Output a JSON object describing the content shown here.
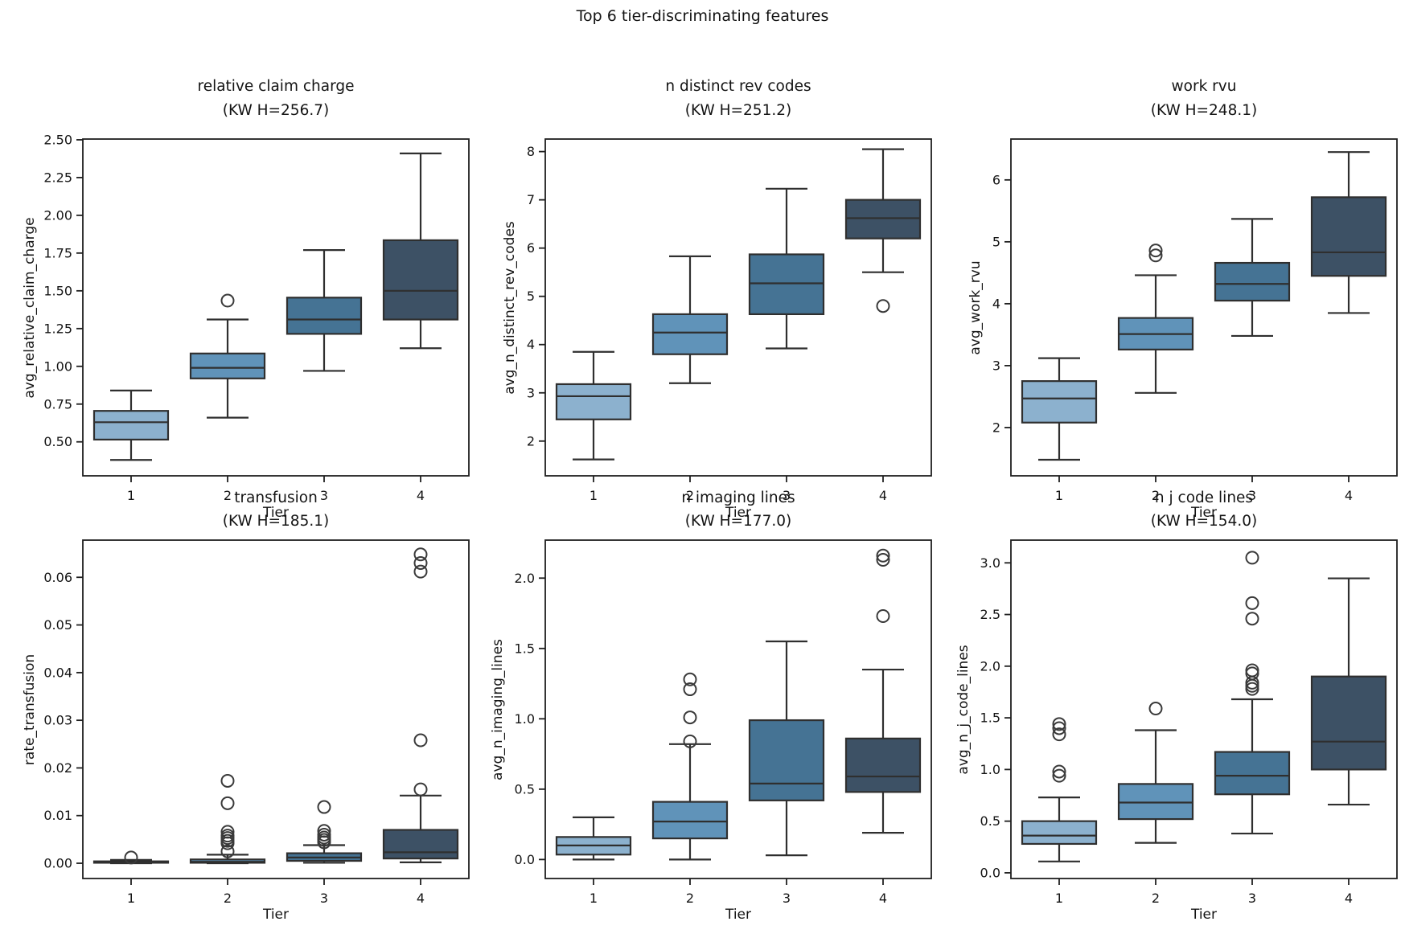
{
  "figure": {
    "title": "Top 6 tier-discriminating features",
    "background": "#ffffff",
    "box_colors": [
      "#8cb1ce",
      "#6093b9",
      "#457394",
      "#3d5165"
    ],
    "box_line_color": "#2f2f2f",
    "spine_color": "#1f1f1f",
    "outlier_color": "#3a3a3a"
  },
  "chart_data": [
    {
      "type": "boxplot",
      "title": "relative claim charge",
      "subtitle": "(KW H=256.7)",
      "xlabel": "Tier",
      "ylabel": "avg_relative_claim_charge",
      "categories": [
        "1",
        "2",
        "3",
        "4"
      ],
      "ylim": [
        0.275,
        2.505
      ],
      "yticks": [
        0.5,
        0.75,
        1.0,
        1.25,
        1.5,
        1.75,
        2.0,
        2.25,
        2.5
      ],
      "ytick_labels": [
        "0.50",
        "0.75",
        "1.00",
        "1.25",
        "1.50",
        "1.75",
        "2.00",
        "2.25",
        "2.50"
      ],
      "boxes": [
        {
          "tier": "1",
          "whislo": 0.38,
          "q1": 0.515,
          "med": 0.63,
          "q3": 0.705,
          "whishi": 0.84,
          "outliers": []
        },
        {
          "tier": "2",
          "whislo": 0.66,
          "q1": 0.92,
          "med": 0.99,
          "q3": 1.085,
          "whishi": 1.31,
          "outliers": [
            1.435
          ]
        },
        {
          "tier": "3",
          "whislo": 0.97,
          "q1": 1.215,
          "med": 1.31,
          "q3": 1.455,
          "whishi": 1.77,
          "outliers": []
        },
        {
          "tier": "4",
          "whislo": 1.12,
          "q1": 1.31,
          "med": 1.5,
          "q3": 1.835,
          "whishi": 2.41,
          "outliers": []
        }
      ]
    },
    {
      "type": "boxplot",
      "title": "n distinct rev codes",
      "subtitle": "(KW H=251.2)",
      "xlabel": "Tier",
      "ylabel": "avg_n_distinct_rev_codes",
      "categories": [
        "1",
        "2",
        "3",
        "4"
      ],
      "ylim": [
        1.28,
        8.26
      ],
      "yticks": [
        2,
        3,
        4,
        5,
        6,
        7,
        8
      ],
      "ytick_labels": [
        "2",
        "3",
        "4",
        "5",
        "6",
        "7",
        "8"
      ],
      "boxes": [
        {
          "tier": "1",
          "whislo": 1.62,
          "q1": 2.45,
          "med": 2.93,
          "q3": 3.18,
          "whishi": 3.85,
          "outliers": []
        },
        {
          "tier": "2",
          "whislo": 3.2,
          "q1": 3.8,
          "med": 4.25,
          "q3": 4.63,
          "whishi": 5.83,
          "outliers": []
        },
        {
          "tier": "3",
          "whislo": 3.92,
          "q1": 4.63,
          "med": 5.27,
          "q3": 5.87,
          "whishi": 7.23,
          "outliers": []
        },
        {
          "tier": "4",
          "whislo": 5.5,
          "q1": 6.2,
          "med": 6.62,
          "q3": 7.0,
          "whishi": 8.05,
          "outliers": [
            4.8
          ]
        }
      ]
    },
    {
      "type": "boxplot",
      "title": "work rvu",
      "subtitle": "(KW H=248.1)",
      "xlabel": "Tier",
      "ylabel": "avg_work_rvu",
      "categories": [
        "1",
        "2",
        "3",
        "4"
      ],
      "ylim": [
        1.22,
        6.66
      ],
      "yticks": [
        2,
        3,
        4,
        5,
        6
      ],
      "ytick_labels": [
        "2",
        "3",
        "4",
        "5",
        "6"
      ],
      "boxes": [
        {
          "tier": "1",
          "whislo": 1.48,
          "q1": 2.08,
          "med": 2.47,
          "q3": 2.75,
          "whishi": 3.12,
          "outliers": []
        },
        {
          "tier": "2",
          "whislo": 2.56,
          "q1": 3.26,
          "med": 3.51,
          "q3": 3.77,
          "whishi": 4.46,
          "outliers": [
            4.78,
            4.86
          ]
        },
        {
          "tier": "3",
          "whislo": 3.48,
          "q1": 4.05,
          "med": 4.32,
          "q3": 4.66,
          "whishi": 5.37,
          "outliers": []
        },
        {
          "tier": "4",
          "whislo": 3.85,
          "q1": 4.45,
          "med": 4.83,
          "q3": 5.72,
          "whishi": 6.45,
          "outliers": []
        }
      ]
    },
    {
      "type": "boxplot",
      "title": "transfusion",
      "subtitle": "(KW H=185.1)",
      "xlabel": "Tier",
      "ylabel": "rate_transfusion",
      "categories": [
        "1",
        "2",
        "3",
        "4"
      ],
      "ylim": [
        -0.0032,
        0.0678
      ],
      "yticks": [
        0.0,
        0.01,
        0.02,
        0.03,
        0.04,
        0.05,
        0.06
      ],
      "ytick_labels": [
        "0.00",
        "0.01",
        "0.02",
        "0.03",
        "0.04",
        "0.05",
        "0.06"
      ],
      "boxes": [
        {
          "tier": "1",
          "whislo": 0.0,
          "q1": 0.0001,
          "med": 0.0002,
          "q3": 0.0004,
          "whishi": 0.0007,
          "outliers": [
            0.0012
          ]
        },
        {
          "tier": "2",
          "whislo": 0.0,
          "q1": 0.0001,
          "med": 0.0003,
          "q3": 0.0008,
          "whishi": 0.0018,
          "outliers": [
            0.0025,
            0.0042,
            0.0047,
            0.0053,
            0.0058,
            0.0066,
            0.0126,
            0.0173
          ]
        },
        {
          "tier": "3",
          "whislo": 0.0001,
          "q1": 0.0005,
          "med": 0.0012,
          "q3": 0.0021,
          "whishi": 0.0038,
          "outliers": [
            0.0044,
            0.0049,
            0.0054,
            0.006,
            0.0068,
            0.0118
          ]
        },
        {
          "tier": "4",
          "whislo": 0.0002,
          "q1": 0.001,
          "med": 0.0023,
          "q3": 0.007,
          "whishi": 0.0142,
          "outliers": [
            0.0155,
            0.0258,
            0.0612,
            0.063,
            0.0648
          ]
        }
      ]
    },
    {
      "type": "boxplot",
      "title": "n imaging lines",
      "subtitle": "(KW H=177.0)",
      "xlabel": "Tier",
      "ylabel": "avg_n_imaging_lines",
      "categories": [
        "1",
        "2",
        "3",
        "4"
      ],
      "ylim": [
        -0.135,
        2.27
      ],
      "yticks": [
        0.0,
        0.5,
        1.0,
        1.5,
        2.0
      ],
      "ytick_labels": [
        "0.0",
        "0.5",
        "1.0",
        "1.5",
        "2.0"
      ],
      "boxes": [
        {
          "tier": "1",
          "whislo": 0.0,
          "q1": 0.035,
          "med": 0.1,
          "q3": 0.16,
          "whishi": 0.3,
          "outliers": []
        },
        {
          "tier": "2",
          "whislo": 0.0,
          "q1": 0.15,
          "med": 0.27,
          "q3": 0.41,
          "whishi": 0.82,
          "outliers": [
            0.84,
            1.01,
            1.21,
            1.28
          ]
        },
        {
          "tier": "3",
          "whislo": 0.03,
          "q1": 0.42,
          "med": 0.54,
          "q3": 0.99,
          "whishi": 1.55,
          "outliers": []
        },
        {
          "tier": "4",
          "whislo": 0.19,
          "q1": 0.48,
          "med": 0.59,
          "q3": 0.86,
          "whishi": 1.35,
          "outliers": [
            1.73,
            2.13,
            2.16
          ]
        }
      ]
    },
    {
      "type": "boxplot",
      "title": "n j code lines",
      "subtitle": "(KW H=154.0)",
      "xlabel": "Tier",
      "ylabel": "avg_n_j_code_lines",
      "categories": [
        "1",
        "2",
        "3",
        "4"
      ],
      "ylim": [
        -0.055,
        3.22
      ],
      "yticks": [
        0.0,
        0.5,
        1.0,
        1.5,
        2.0,
        2.5,
        3.0
      ],
      "ytick_labels": [
        "0.0",
        "0.5",
        "1.0",
        "1.5",
        "2.0",
        "2.5",
        "3.0"
      ],
      "boxes": [
        {
          "tier": "1",
          "whislo": 0.11,
          "q1": 0.28,
          "med": 0.36,
          "q3": 0.5,
          "whishi": 0.73,
          "outliers": [
            0.94,
            0.98,
            1.34,
            1.4,
            1.44
          ]
        },
        {
          "tier": "2",
          "whislo": 0.29,
          "q1": 0.52,
          "med": 0.68,
          "q3": 0.86,
          "whishi": 1.38,
          "outliers": [
            1.59
          ]
        },
        {
          "tier": "3",
          "whislo": 0.38,
          "q1": 0.76,
          "med": 0.94,
          "q3": 1.17,
          "whishi": 1.68,
          "outliers": [
            1.78,
            1.81,
            1.84,
            1.93,
            1.96,
            2.46,
            2.61,
            3.05
          ]
        },
        {
          "tier": "4",
          "whislo": 0.66,
          "q1": 1.0,
          "med": 1.27,
          "q3": 1.9,
          "whishi": 2.85,
          "outliers": []
        }
      ]
    }
  ]
}
